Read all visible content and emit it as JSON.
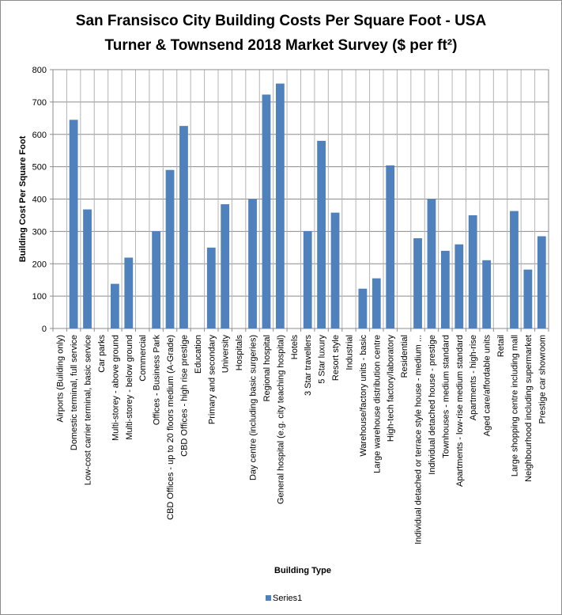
{
  "chart_data": {
    "type": "bar",
    "title_line1": "San Fransisco City Building Costs Per Square Foot - USA",
    "title_line2": "Turner & Townsend 2018 Market Survey ($ per ft²)",
    "xlabel": "Building Type",
    "ylabel": "Building  Cost Per Square Foot",
    "ylim": [
      0,
      800
    ],
    "yticks": [
      0,
      100,
      200,
      300,
      400,
      500,
      600,
      700,
      800
    ],
    "grid": true,
    "legend_position": "bottom",
    "bar_color": "#4f81bd",
    "categories": [
      "Airports (Building  only)",
      "Domestic terminal, full service",
      "Low-cost carrier terminal, basic service",
      "Car parks",
      "Multi-storey - above ground",
      "Multi-storey - below ground",
      "Commercial",
      "Offices - Business Park",
      "CBD Offices - up to 20 floors medium (A-Grade)",
      "CBD Offices - high rise prestige",
      "Education",
      "Primary and secondary",
      "University",
      "Hospitals",
      "Day centre (including basic surgeries)",
      "Regional hospital",
      "General hospital (e.g. city teaching hospital)",
      "Hotels",
      "3 Star travellers",
      "5 Star luxury",
      "Resort style",
      "Industrial",
      "Warehouse/factory units - basic",
      "Large warehouse distribution centre",
      "High-tech factory/laboratory",
      "Residential",
      "Individual detached or terrace style house - medium ...",
      "Individual detached house - prestige",
      "Townhouses - medium standard",
      "Apartments - low-rise medium standard",
      "Apartments - high-rise",
      "Aged care/affordable units",
      "Retail",
      "Large shopping centre including mall",
      "Neighbourhood including supermarket",
      "Prestige car showroom"
    ],
    "series": [
      {
        "name": "Series1",
        "values": [
          null,
          645,
          368,
          null,
          138,
          219,
          null,
          301,
          490,
          626,
          null,
          250,
          384,
          null,
          400,
          723,
          757,
          null,
          301,
          580,
          358,
          null,
          123,
          155,
          504,
          null,
          279,
          400,
          240,
          260,
          350,
          211,
          null,
          363,
          182,
          285
        ]
      }
    ]
  }
}
